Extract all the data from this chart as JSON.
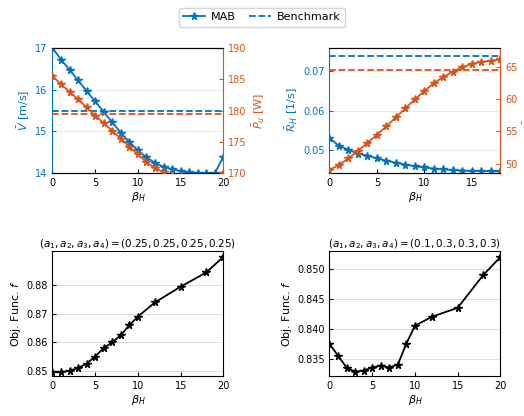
{
  "top_left": {
    "beta_x": [
      0,
      1,
      2,
      3,
      4,
      5,
      6,
      7,
      8,
      9,
      10,
      11,
      12,
      13,
      14,
      15,
      16,
      17,
      18,
      19,
      20
    ],
    "V_mab": [
      17.0,
      16.72,
      16.48,
      16.22,
      15.97,
      15.72,
      15.47,
      15.22,
      14.97,
      14.75,
      14.55,
      14.38,
      14.25,
      14.15,
      14.1,
      14.05,
      14.02,
      14.01,
      14.0,
      14.0,
      14.4
    ],
    "P_mab": [
      185.5,
      184.2,
      183.0,
      181.8,
      180.5,
      179.2,
      178.0,
      176.8,
      175.5,
      174.2,
      173.0,
      171.8,
      170.8,
      170.2,
      169.8,
      169.5,
      169.3,
      169.2,
      169.1,
      169.0,
      170.0
    ],
    "V_bench": 15.5,
    "P_bench": 179.5,
    "ylabel_left": "$\\bar{V}$ [m/s]",
    "ylabel_right": "$\\bar{P}_u$ [W]",
    "xlabel": "$\\beta_H$",
    "ylim_left": [
      14,
      17
    ],
    "ylim_right": [
      170,
      190
    ],
    "yticks_left": [
      14,
      15,
      16,
      17
    ],
    "yticks_right": [
      170,
      175,
      180,
      185,
      190
    ],
    "xticks": [
      0,
      5,
      10,
      15,
      20
    ],
    "xlim": [
      0,
      20
    ]
  },
  "top_right": {
    "beta_x": [
      0,
      1,
      2,
      3,
      4,
      5,
      6,
      7,
      8,
      9,
      10,
      11,
      12,
      13,
      14,
      15,
      16,
      17,
      18
    ],
    "R_mab": [
      0.053,
      0.051,
      0.05,
      0.049,
      0.0485,
      0.0478,
      0.0472,
      0.0467,
      0.0462,
      0.0458,
      0.0455,
      0.0452,
      0.045,
      0.0448,
      0.0447,
      0.0446,
      0.0446,
      0.0445,
      0.0445
    ],
    "T_mab": [
      49.0,
      49.8,
      50.8,
      52.0,
      53.2,
      54.5,
      55.8,
      57.2,
      58.6,
      60.0,
      61.3,
      62.5,
      63.5,
      64.3,
      65.0,
      65.5,
      65.8,
      66.0,
      66.2
    ],
    "R_bench": 0.074,
    "T_bench": 64.5,
    "ylabel_left": "$\\bar{\\mathcal{R}}_H$ [1/s]",
    "ylabel_right": "$\\bar{T}_D$ [s]",
    "xlabel": "$\\beta_H$",
    "ylim_left": [
      0.044,
      0.076
    ],
    "ylim_right": [
      48.5,
      68.0
    ],
    "yticks_left": [
      0.05,
      0.06,
      0.07
    ],
    "yticks_right": [
      50,
      55,
      60,
      65
    ],
    "xticks": [
      0,
      5,
      10,
      15
    ],
    "xlim": [
      0,
      18
    ]
  },
  "bot_left": {
    "beta_x": [
      0,
      1,
      2,
      3,
      4,
      5,
      6,
      7,
      8,
      9,
      10,
      12,
      15,
      18,
      20
    ],
    "f_vals": [
      0.8495,
      0.8495,
      0.85,
      0.851,
      0.8525,
      0.855,
      0.858,
      0.86,
      0.8625,
      0.866,
      0.869,
      0.874,
      0.8795,
      0.8845,
      0.89
    ],
    "title": "$(a_1, a_2, a_3, a_4) = (0.25, 0.25, 0.25, 0.25)$",
    "ylabel": "Obj. Func. $f$",
    "xlabel": "$\\beta_H$",
    "ylim": [
      0.848,
      0.892
    ],
    "yticks": [
      0.85,
      0.86,
      0.87,
      0.88
    ],
    "xticks": [
      0,
      5,
      10,
      15,
      20
    ],
    "xlim": [
      0,
      20
    ]
  },
  "bot_right": {
    "beta_x": [
      0,
      1,
      2,
      3,
      4,
      5,
      6,
      7,
      8,
      9,
      10,
      12,
      15,
      18,
      20
    ],
    "f_vals": [
      0.8375,
      0.8355,
      0.8335,
      0.8328,
      0.833,
      0.8335,
      0.8338,
      0.8335,
      0.834,
      0.8375,
      0.8405,
      0.842,
      0.8435,
      0.849,
      0.852
    ],
    "title": "$(a_1, a_2, a_3, a_4) = (0.1, 0.3, 0.3, 0.3)$",
    "ylabel": "Obj. Func. $f$",
    "xlabel": "$\\beta_H$",
    "ylim": [
      0.832,
      0.853
    ],
    "yticks": [
      0.835,
      0.84,
      0.845,
      0.85
    ],
    "xticks": [
      0,
      5,
      10,
      15,
      20
    ],
    "xlim": [
      0,
      20
    ]
  },
  "legend_labels": [
    "MAB",
    "Benchmark"
  ],
  "color_blue": "#0072BD",
  "color_orange": "#D95319",
  "color_black": "#000000",
  "marker_style": "*"
}
